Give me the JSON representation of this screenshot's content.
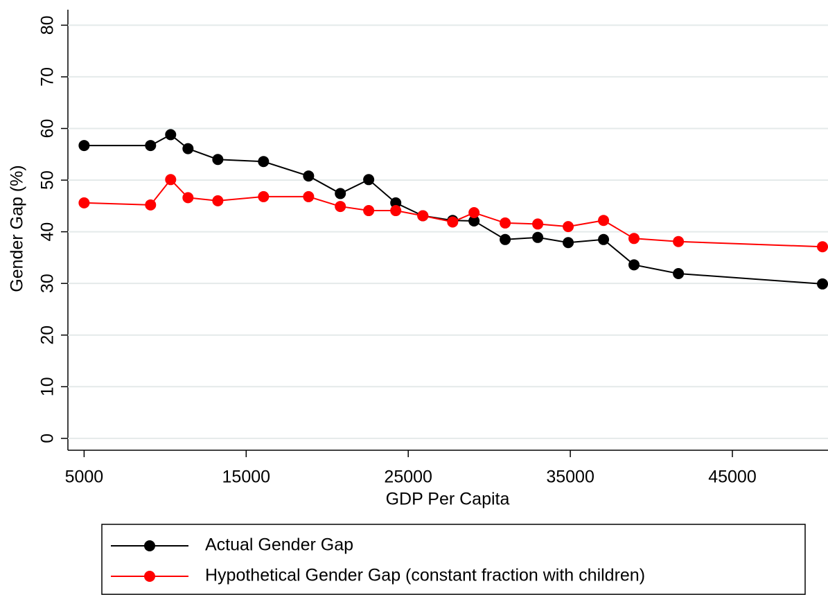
{
  "chart_data": {
    "type": "line",
    "x_label": "GDP Per Capita",
    "y_label": "Gender Gap (%)",
    "x": [
      5000,
      9100,
      10340,
      11410,
      13250,
      16070,
      18850,
      20810,
      22560,
      24230,
      25900,
      27740,
      29060,
      30980,
      32990,
      34870,
      37050,
      38930,
      41670,
      50560
    ],
    "series": [
      {
        "name": "Actual Gender Gap",
        "color": "#000000",
        "values": [
          56.7,
          56.7,
          58.8,
          56.1,
          54.0,
          53.6,
          50.8,
          47.4,
          50.1,
          45.6,
          43.1,
          42.2,
          42.1,
          38.5,
          38.9,
          37.9,
          38.5,
          33.6,
          31.9,
          29.9
        ]
      },
      {
        "name": "Hypothetical Gender Gap (constant fraction with children)",
        "color": "#ff0000",
        "values": [
          45.6,
          45.2,
          50.1,
          46.6,
          46.0,
          46.8,
          46.8,
          44.9,
          44.1,
          44.1,
          43.1,
          41.9,
          43.7,
          41.7,
          41.5,
          41.0,
          42.2,
          38.7,
          38.1,
          37.1
        ]
      }
    ],
    "xlim": [
      4000,
      50900
    ],
    "xticks": [
      5000,
      15000,
      25000,
      35000,
      45000
    ],
    "ylim": [
      -2.3,
      83
    ],
    "yticks": [
      0,
      10,
      20,
      30,
      40,
      50,
      60,
      70,
      80
    ],
    "grid": true,
    "legend": "bottom"
  }
}
